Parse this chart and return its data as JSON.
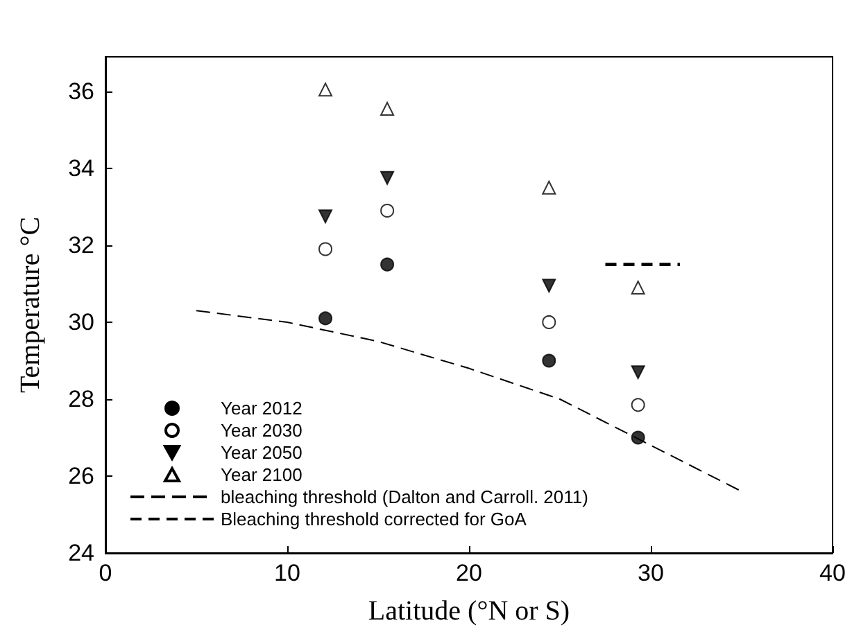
{
  "chart_data": {
    "type": "scatter",
    "xlabel": "Latitude (°N or S)",
    "ylabel": "Temperature °C",
    "xlim": [
      0,
      40
    ],
    "xticks": [
      0,
      10,
      20,
      30,
      40
    ],
    "ylim": [
      24,
      36.9
    ],
    "yticks": [
      24,
      26,
      28,
      30,
      32,
      34,
      36
    ],
    "grid": false,
    "legend": "bottom left",
    "series": [
      {
        "name": "Year 2012",
        "color": "#000000",
        "marker": "circle",
        "x": [
          12.1,
          15.5,
          24.4,
          29.3
        ],
        "values": [
          30.1,
          31.5,
          29.0,
          27.0
        ]
      },
      {
        "name": "Year 2030",
        "color": "#000000",
        "marker": "circle-open",
        "x": [
          12.1,
          15.5,
          24.4,
          29.3
        ],
        "values": [
          31.9,
          32.9,
          30.0,
          27.85
        ]
      },
      {
        "name": "Year 2050",
        "color": "#000000",
        "marker": "triangle-down",
        "x": [
          12.1,
          15.5,
          24.4,
          29.3
        ],
        "values": [
          32.75,
          33.75,
          30.95,
          28.7
        ]
      },
      {
        "name": "Year 2100",
        "color": "#000000",
        "marker": "triangle-open",
        "x": [
          12.1,
          15.5,
          24.4,
          29.3
        ],
        "values": [
          36.05,
          35.55,
          33.5,
          30.9
        ]
      },
      {
        "name": "bleaching threshold (Dalton and Carroll. 2011)",
        "type": "line",
        "color": "#000000",
        "line_style": "dashed",
        "marker": "none",
        "x": [
          5,
          10,
          15,
          20,
          25,
          30,
          35
        ],
        "values": [
          30.3,
          30.0,
          29.5,
          28.8,
          28.0,
          26.8,
          25.6
        ]
      },
      {
        "name": "Bleaching threshold corrected for GoA",
        "type": "line",
        "color": "#000000",
        "line_style": "dashed",
        "marker": "none",
        "x": [
          27.5,
          31.6
        ],
        "values": [
          31.5,
          31.5
        ]
      }
    ]
  }
}
